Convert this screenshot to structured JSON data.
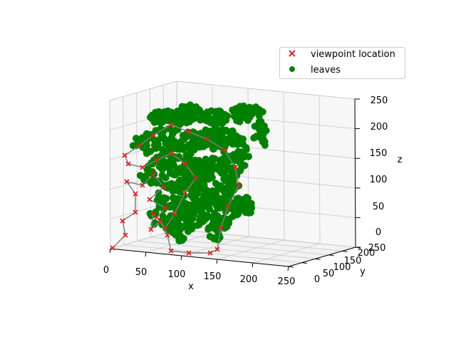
{
  "chart_data": {
    "type": "scatter",
    "projection": "3d",
    "view": "elevation ~10deg, azimuth ~-80deg",
    "grid": true,
    "legend_placement": "top-right",
    "xlabel": "x",
    "ylabel": "y",
    "zlabel": "z",
    "xlim": [
      0,
      250
    ],
    "ylim": [
      0,
      250
    ],
    "zlim": [
      0,
      250
    ],
    "x_ticks": [
      "0",
      "50",
      "100",
      "150",
      "200",
      "250"
    ],
    "y_ticks": [
      "0",
      "50",
      "100",
      "150",
      "200",
      "250"
    ],
    "z_ticks": [
      "0",
      "50",
      "100",
      "150",
      "200",
      "250"
    ],
    "series": [
      {
        "name": "viewpoint location",
        "marker": "x",
        "color": "#d62728",
        "connected_by_path": true,
        "path_color": "#808080",
        "points_note": "approximate projected camera viewpoints"
      },
      {
        "name": "leaves",
        "marker": "o",
        "color": "#008000",
        "points_note": "dense cloud of leaf surface points"
      }
    ]
  }
}
